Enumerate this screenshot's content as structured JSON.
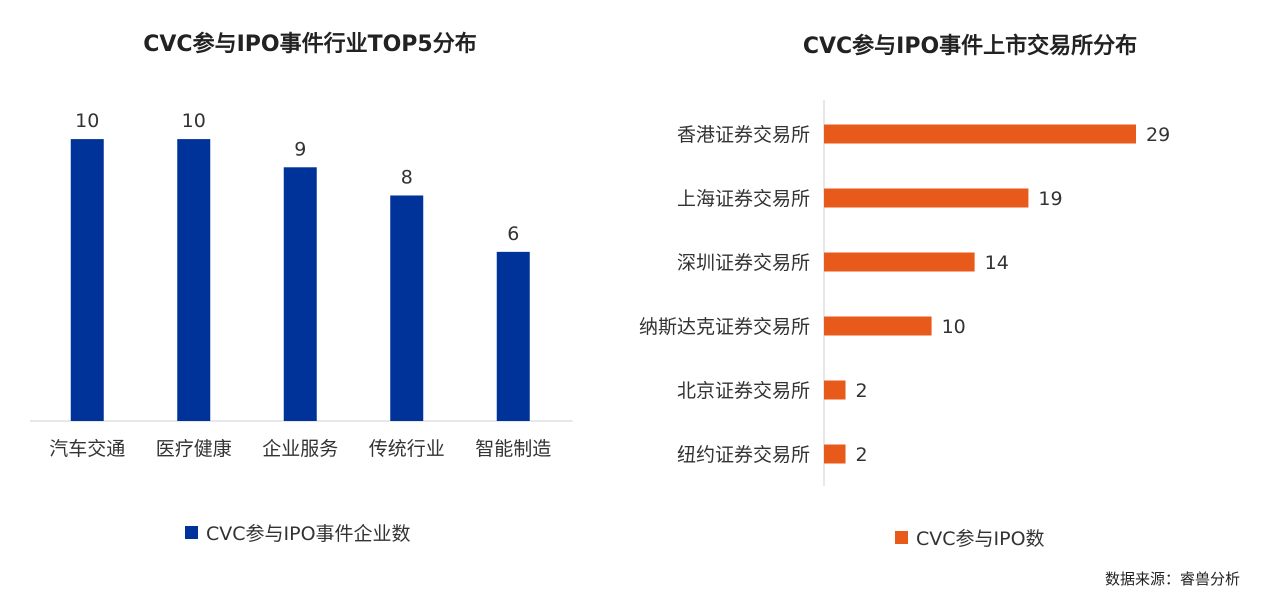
{
  "colors": {
    "left_series": "#003399",
    "right_series": "#E85A1A"
  },
  "source_note": "数据来源：睿兽分析",
  "chart_data": [
    {
      "type": "bar",
      "title": "CVC参与IPO事件行业TOP5分布",
      "categories": [
        "汽车交通",
        "医疗健康",
        "企业服务",
        "传统行业",
        "智能制造"
      ],
      "series": [
        {
          "name": "CVC参与IPO事件企业数",
          "values": [
            10,
            10,
            9,
            8,
            6
          ]
        }
      ],
      "ylim": [
        0,
        10.5
      ],
      "grid": false,
      "legend_position": "bottom"
    },
    {
      "type": "bar",
      "orientation": "horizontal",
      "title": "CVC参与IPO事件上市交易所分布",
      "categories": [
        "香港证券交易所",
        "上海证券交易所",
        "深圳证券交易所",
        "纳斯达克证券交易所",
        "北京证券交易所",
        "纽约证券交易所"
      ],
      "series": [
        {
          "name": "CVC参与IPO数",
          "values": [
            29,
            19,
            14,
            10,
            2,
            2
          ]
        }
      ],
      "xlim": [
        0,
        30
      ],
      "grid": false,
      "legend_position": "bottom"
    }
  ]
}
